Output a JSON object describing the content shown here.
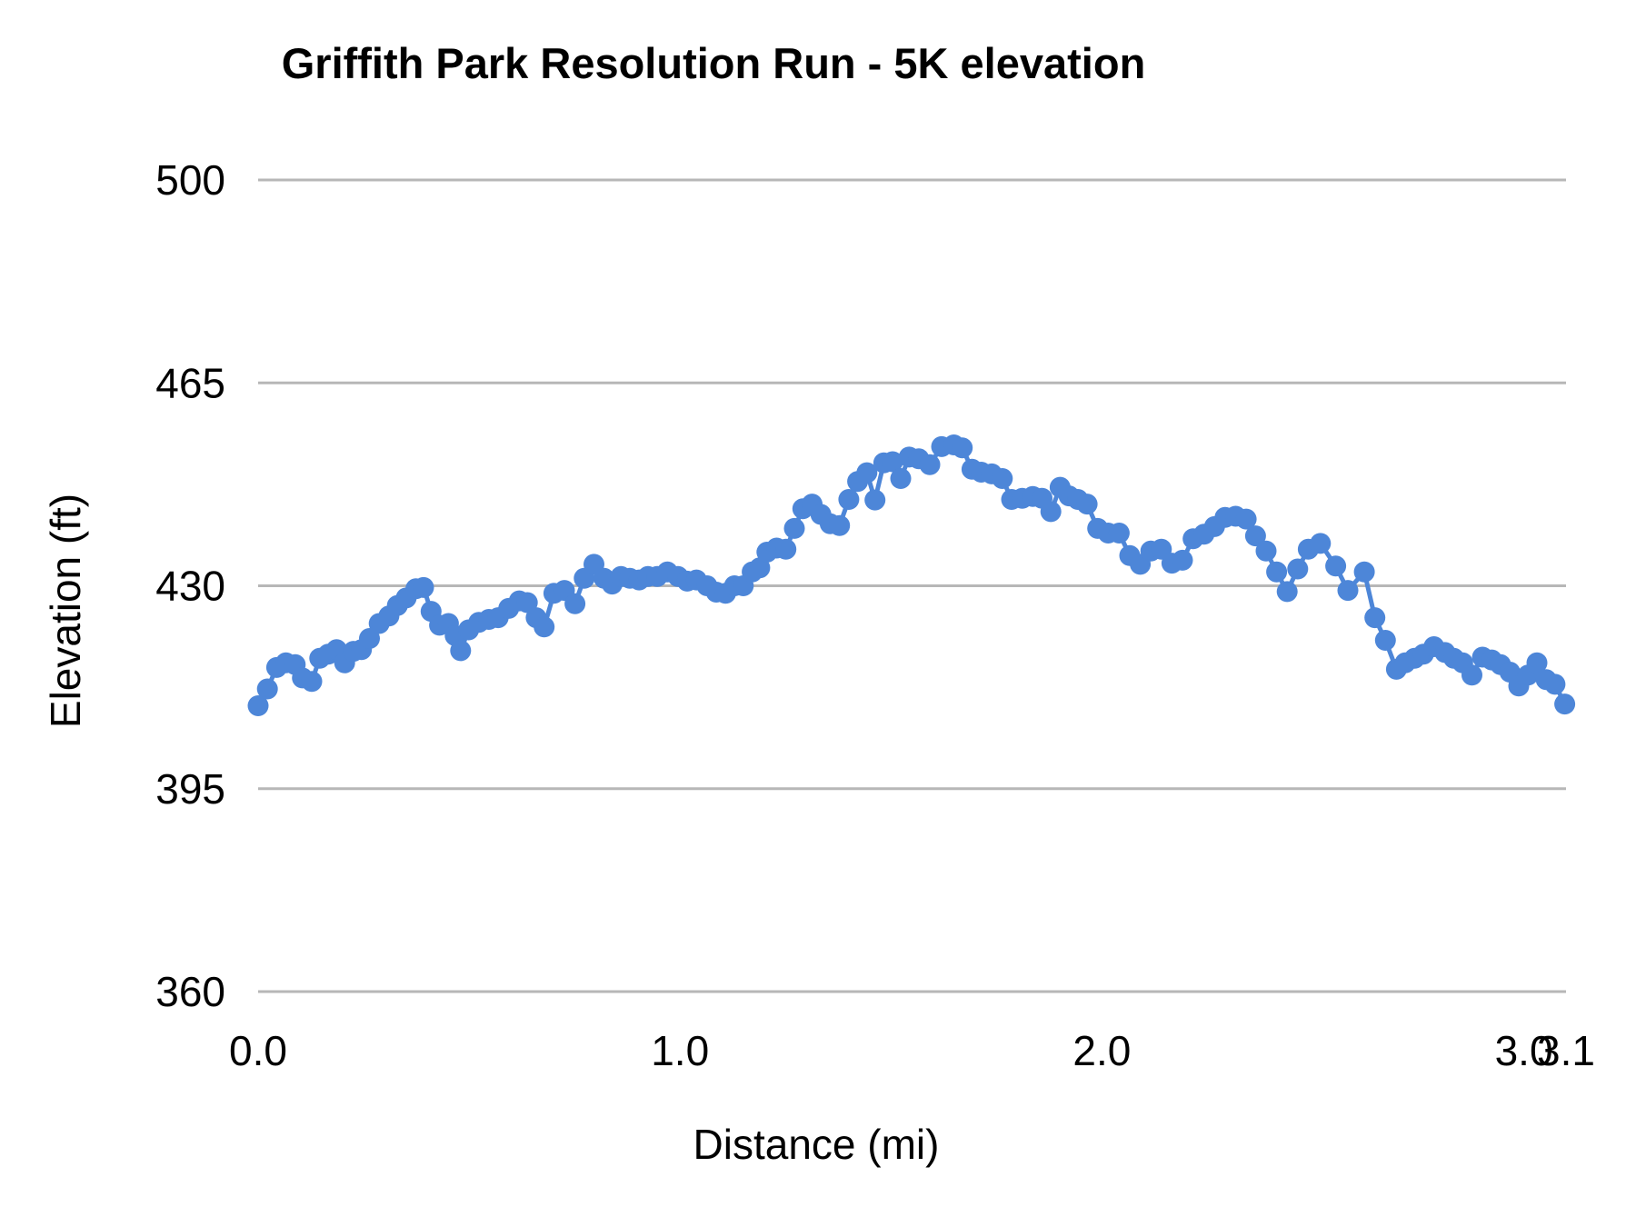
{
  "chart_data": {
    "type": "line",
    "title": "Griffith Park Resolution Run - 5K elevation",
    "xlabel": "Distance (mi)",
    "ylabel": "Elevation (ft)",
    "xlim": [
      0,
      3.1
    ],
    "ylim": [
      360,
      500
    ],
    "grid": "horizontal",
    "legend": "none",
    "point_color": "#4d86d8",
    "line_color": "#4d86d8",
    "grid_color": "#b7b7b7",
    "text_color": "#000000",
    "background_color": "#ffffff",
    "y_ticks": {
      "values": [
        500,
        465,
        430,
        395,
        360
      ],
      "labels": [
        "500",
        "465",
        "430",
        "395",
        "360"
      ]
    },
    "x_ticks": {
      "values": [
        0,
        1,
        2,
        3,
        3.1
      ],
      "labels": [
        "0.0",
        "1.0",
        "2.0",
        "3.0",
        "3.1"
      ]
    },
    "series": [
      {
        "name": "elevation",
        "x": [
          0.0,
          0.022,
          0.044,
          0.066,
          0.088,
          0.105,
          0.127,
          0.146,
          0.166,
          0.186,
          0.205,
          0.226,
          0.245,
          0.264,
          0.287,
          0.31,
          0.33,
          0.351,
          0.374,
          0.392,
          0.41,
          0.43,
          0.451,
          0.467,
          0.48,
          0.499,
          0.523,
          0.547,
          0.569,
          0.594,
          0.619,
          0.638,
          0.659,
          0.678,
          0.701,
          0.726,
          0.751,
          0.773,
          0.796,
          0.82,
          0.839,
          0.86,
          0.881,
          0.903,
          0.924,
          0.946,
          0.97,
          0.995,
          1.017,
          1.039,
          1.064,
          1.086,
          1.108,
          1.129,
          1.15,
          1.171,
          1.189,
          1.206,
          1.229,
          1.251,
          1.271,
          1.291,
          1.313,
          1.334,
          1.356,
          1.378,
          1.4,
          1.421,
          1.443,
          1.462,
          1.483,
          1.504,
          1.523,
          1.543,
          1.566,
          1.592,
          1.62,
          1.649,
          1.669,
          1.692,
          1.714,
          1.739,
          1.764,
          1.786,
          1.811,
          1.836,
          1.858,
          1.879,
          1.901,
          1.922,
          1.943,
          1.965,
          1.99,
          2.015,
          2.041,
          2.066,
          2.091,
          2.116,
          2.141,
          2.166,
          2.191,
          2.216,
          2.242,
          2.267,
          2.292,
          2.317,
          2.342,
          2.364,
          2.389,
          2.414,
          2.439,
          2.464,
          2.489,
          2.518,
          2.554,
          2.583,
          2.622,
          2.647,
          2.672,
          2.698,
          2.719,
          2.741,
          2.762,
          2.787,
          2.813,
          2.834,
          2.855,
          2.877,
          2.902,
          2.924,
          2.945,
          2.967,
          2.988,
          3.01,
          3.031,
          3.053,
          3.074,
          3.097
        ],
        "y": [
          409.3,
          412.2,
          415.9,
          416.7,
          416.4,
          414.1,
          413.5,
          417.5,
          418.2,
          419.0,
          416.7,
          418.7,
          419.0,
          420.9,
          423.5,
          424.8,
          426.6,
          427.9,
          429.5,
          429.7,
          425.6,
          423.2,
          423.5,
          421.4,
          418.8,
          422.4,
          423.7,
          424.2,
          424.5,
          426.1,
          427.4,
          427.1,
          424.5,
          422.9,
          428.7,
          429.2,
          426.9,
          431.3,
          433.7,
          431.3,
          430.3,
          431.6,
          431.3,
          431.0,
          431.6,
          431.6,
          432.4,
          431.6,
          430.8,
          431.0,
          430.0,
          428.9,
          428.7,
          430.0,
          430.0,
          432.4,
          433.1,
          435.8,
          436.5,
          436.3,
          439.9,
          443.3,
          444.1,
          442.3,
          440.7,
          440.4,
          444.9,
          448.0,
          449.5,
          444.8,
          451.2,
          451.4,
          448.5,
          452.2,
          451.9,
          450.9,
          454.0,
          454.3,
          453.8,
          450.1,
          449.6,
          449.3,
          448.5,
          444.9,
          445.1,
          445.4,
          445.1,
          442.8,
          447.0,
          445.5,
          444.9,
          444.1,
          439.9,
          439.1,
          439.1,
          435.2,
          433.7,
          436.0,
          436.3,
          433.9,
          434.4,
          438.1,
          438.9,
          440.2,
          441.8,
          442.0,
          441.5,
          438.6,
          436.0,
          432.4,
          429.0,
          432.9,
          436.3,
          437.3,
          433.4,
          429.2,
          432.4,
          424.5,
          420.6,
          415.6,
          416.7,
          417.5,
          418.2,
          419.5,
          418.5,
          417.5,
          416.7,
          414.6,
          417.7,
          417.2,
          416.4,
          415.1,
          412.7,
          414.6,
          416.7,
          413.8,
          413.0,
          409.6
        ]
      }
    ]
  }
}
